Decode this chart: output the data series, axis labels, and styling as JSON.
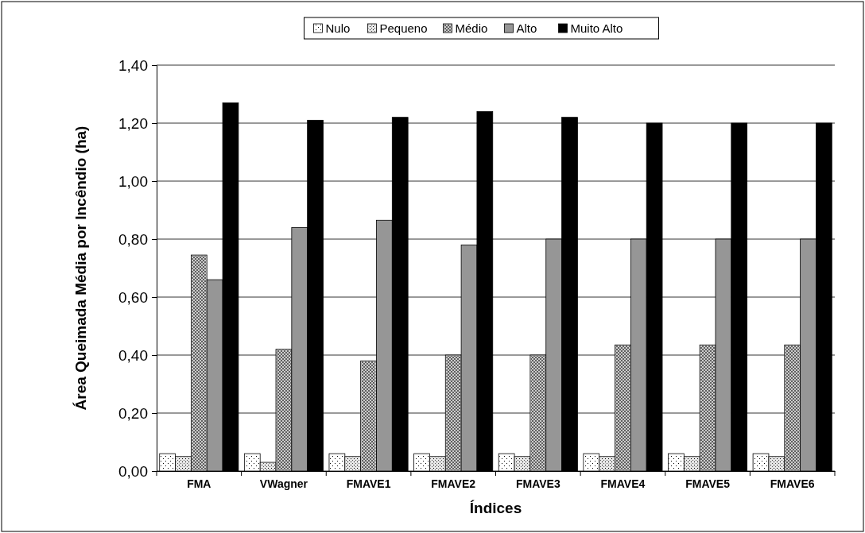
{
  "chart_data": {
    "type": "bar",
    "xlabel": "Índices",
    "ylabel": "Área Queimada Média  por Incêndio (ha)",
    "categories": [
      "FMA",
      "VWagner",
      "FMAVE1",
      "FMAVE2",
      "FMAVE3",
      "FMAVE4",
      "FMAVE5",
      "FMAVE6"
    ],
    "series": [
      {
        "name": "Nulo",
        "color": "#ffffff",
        "values": [
          0.06,
          0.06,
          0.06,
          0.06,
          0.06,
          0.06,
          0.06,
          0.06
        ]
      },
      {
        "name": "Pequeno",
        "color": "#e6e6e6",
        "values": [
          0.05,
          0.03,
          0.05,
          0.05,
          0.05,
          0.05,
          0.05,
          0.05
        ]
      },
      {
        "name": "Médio",
        "color": "#cccccc",
        "values": [
          0.745,
          0.42,
          0.38,
          0.4,
          0.4,
          0.435,
          0.435,
          0.435
        ]
      },
      {
        "name": "Alto",
        "color": "#969696",
        "values": [
          0.66,
          0.84,
          0.865,
          0.78,
          0.8,
          0.8,
          0.8,
          0.8
        ]
      },
      {
        "name": "Muito Alto",
        "color": "#000000",
        "values": [
          1.27,
          1.21,
          1.22,
          1.24,
          1.22,
          1.2,
          1.2,
          1.2
        ]
      }
    ],
    "ylim": [
      0,
      1.4
    ],
    "yticks": [
      {
        "value": 0,
        "label": "0,00"
      },
      {
        "value": 0.2,
        "label": "0,20"
      },
      {
        "value": 0.4,
        "label": "0,40"
      },
      {
        "value": 0.6,
        "label": "0,60"
      },
      {
        "value": 0.8,
        "label": "0,80"
      },
      {
        "value": 1.0,
        "label": "1,00"
      },
      {
        "value": 1.2,
        "label": "1,20"
      },
      {
        "value": 1.4,
        "label": "1,40"
      }
    ],
    "grid": "y",
    "legend": "top"
  }
}
